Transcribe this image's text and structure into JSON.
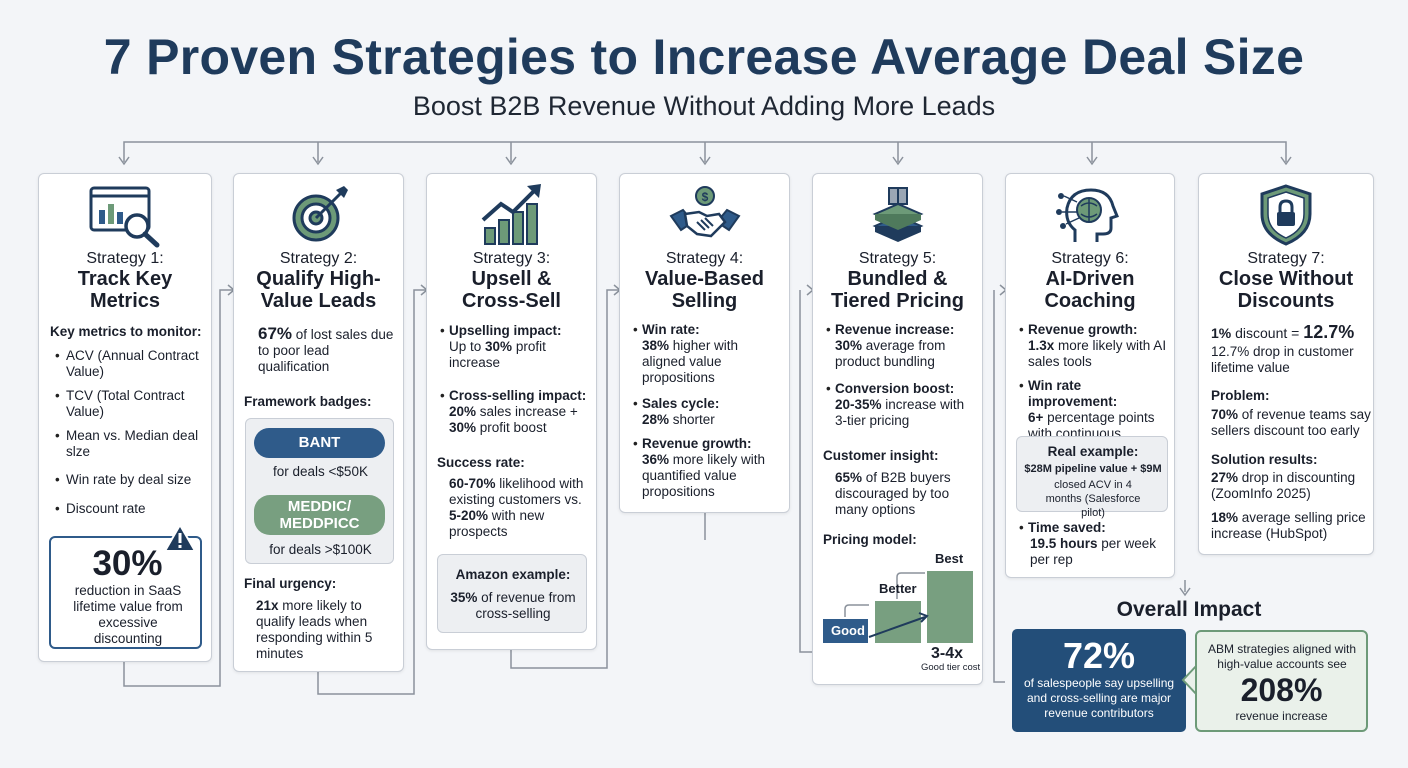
{
  "header": {
    "title": "7 Proven Strategies to Increase Average Deal Size",
    "subtitle": "Boost B2B Revenue Without Adding More Leads"
  },
  "colors": {
    "navy": "#1f3b5c",
    "blue": "#2f5b8a",
    "green": "#6d9a78",
    "card_border": "#c9ced6"
  },
  "s1": {
    "num": "Strategy 1:",
    "name": "Track Key Metrics",
    "heading": "Key metrics to monitor:",
    "items": [
      "ACV (Annual Contract Value)",
      "TCV (Total Contract Value)",
      "Mean vs. Median deal slze",
      "Win rate by deal size",
      "Discount rate"
    ],
    "callout_value": "30%",
    "callout_text": "reduction in SaaS lifetime value from excessive discounting",
    "icon": "analytics-magnifier-icon",
    "warn_icon": "warning-icon"
  },
  "s2": {
    "num": "Strategy 2:",
    "name": "Qualify High-Value Leads",
    "stat_bold": "67%",
    "stat_rest": " of lost sales due to poor lead qualification",
    "badges_heading": "Framework badges:",
    "badge1": "BANT",
    "badge1_note": "for deals <$50K",
    "badge2": "MEDDIC/ MEDDPICC",
    "badge2_note": "for deals >$100K",
    "urgency_heading": "Final urgency:",
    "urgency_bold": "21x",
    "urgency_rest": " more likely to qualify leads when responding within 5 minutes",
    "icon": "target-icon"
  },
  "s3": {
    "num": "Strategy 3:",
    "name": "Upsell & Cross-Sell",
    "b1_label": "Upselling impact:",
    "b1_pre": "Up to ",
    "b1_bold": "30%",
    "b1_post": " profit increase",
    "b2_label": "Cross-selling impact:",
    "b2_bold1": "20%",
    "b2_mid": " sales increase + ",
    "b2_bold2": "30%",
    "b2_post": " profit boost",
    "sr_heading": "Success rate:",
    "sr_bold1": "60-70%",
    "sr_mid": " likelihood with existing customers vs. ",
    "sr_bold2": "5-20%",
    "sr_post": " with new prospects",
    "amazon_heading": "Amazon example:",
    "amazon_bold": "35%",
    "amazon_rest": " of revenue from cross-selling",
    "icon": "growth-chart-icon"
  },
  "s4": {
    "num": "Strategy 4:",
    "name": "Value-Based Selling",
    "b1_label": "Win rate:",
    "b1_bold": "38%",
    "b1_rest": " higher with aligned value propositions",
    "b2_label": "Sales cycle:",
    "b2_bold": "28%",
    "b2_rest": " shorter",
    "b3_label": "Revenue growth:",
    "b3_bold": "36%",
    "b3_rest": " more likely with quantified value propositions",
    "icon": "handshake-icon"
  },
  "s5": {
    "num": "Strategy 5:",
    "name": "Bundled & Tiered Pricing",
    "b1_label": "Revenue increase:",
    "b1_bold": "30%",
    "b1_rest": " average from product bundling",
    "b2_label": "Conversion boost:",
    "b2_bold": "20-35%",
    "b2_rest": " increase with 3-tier pricing",
    "insight_heading": "Customer insight:",
    "insight_bold": "65%",
    "insight_rest": " of B2B buyers discouraged by too many options",
    "model_heading": "Pricing model:",
    "tier_good": "Good",
    "tier_better": "Better",
    "tier_best": "Best",
    "tier_mult": "3-4x",
    "tier_note": "Good tier cost",
    "icon": "bundle-stack-icon"
  },
  "s6": {
    "num": "Strategy 6:",
    "name": "AI-Driven Coaching",
    "b1_label": "Revenue growth:",
    "b1_bold": "1.3x",
    "b1_rest": " more likely with AI sales tools",
    "b2_label": "Win rate improvement:",
    "b2_bold": "6+",
    "b2_rest": " percentage points with continuous coaching",
    "ex_heading": "Real example:",
    "ex_line1": "$28M pipeline value + $9M",
    "ex_line2": "closed ACV in 4 months (Salesforce pilot)",
    "b3_label": "Time saved:",
    "b3_bold": "19.5 hours",
    "b3_rest": " per week per rep",
    "icon": "ai-head-icon"
  },
  "s7": {
    "num": "Strategy 7:",
    "name": "Close Without Discounts",
    "l1_bold": "1%",
    "l1_mid": " discount = ",
    "l1_big": "12.7%",
    "l1_rest": "12.7% drop in customer lifetime value",
    "problem_heading": "Problem:",
    "problem_bold": "70%",
    "problem_rest": " of revenue teams say sellers discount too early",
    "sol_heading": "Solution results:",
    "sol1_bold": "27%",
    "sol1_rest": " drop in discounting (ZoomInfo 2025)",
    "sol2_bold": "18%",
    "sol2_rest": " average selling price increase (HubSpot)",
    "icon": "shield-lock-icon"
  },
  "impact": {
    "title": "Overall Impact",
    "left_value": "72%",
    "left_text": "of salespeople say upselling and cross-selling are major revenue contributors",
    "right_text": "ABM strategies aligned with high-value accounts see",
    "right_value": "208%",
    "right_tail": "revenue increase"
  }
}
